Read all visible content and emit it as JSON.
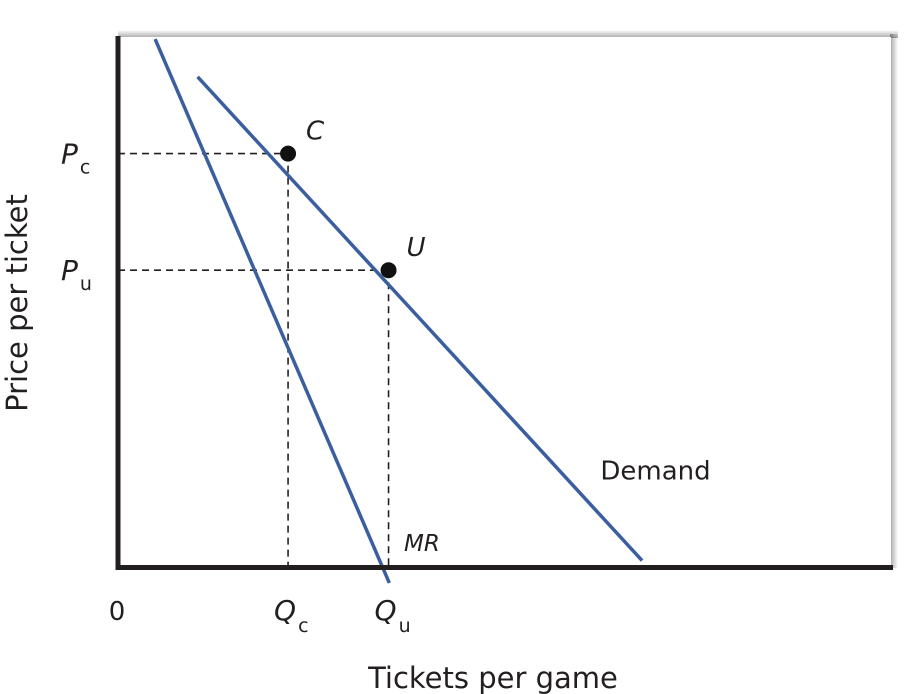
{
  "chart_data": {
    "type": "line",
    "title": "",
    "xlabel": "Tickets per game",
    "ylabel": "Price per ticket",
    "xlim": [
      0,
      100
    ],
    "ylim": [
      0,
      100
    ],
    "grid": false,
    "origin_label": "0",
    "x_ticks": [
      {
        "main": "Q",
        "sub": "c",
        "value": 22
      },
      {
        "main": "Q",
        "sub": "u",
        "value": 35
      }
    ],
    "y_ticks": [
      {
        "main": "P",
        "sub": "c",
        "value": 78
      },
      {
        "main": "P",
        "sub": "u",
        "value": 56
      }
    ],
    "series": [
      {
        "name": "Demand",
        "label": "Demand",
        "italic": false,
        "x": [
          10.3,
          67.8
        ],
        "y": [
          92.5,
          1.2
        ],
        "label_at": {
          "x": 62.4,
          "y": 16.5
        }
      },
      {
        "name": "MR",
        "label": "MR",
        "italic": true,
        "x": [
          4.8,
          35.1
        ],
        "y": [
          99.6,
          -3.0
        ],
        "label_at": {
          "x": 37.0,
          "y": 3.0
        }
      }
    ],
    "points": [
      {
        "label": "C",
        "x": 22,
        "y": 78
      },
      {
        "label": "U",
        "x": 35,
        "y": 56
      }
    ],
    "colors": {
      "curve": "#3a5e9e",
      "axis": "#231f20",
      "guide": "#231f20",
      "point": "#111111",
      "frame_shadow": "#d0d0d0"
    }
  }
}
